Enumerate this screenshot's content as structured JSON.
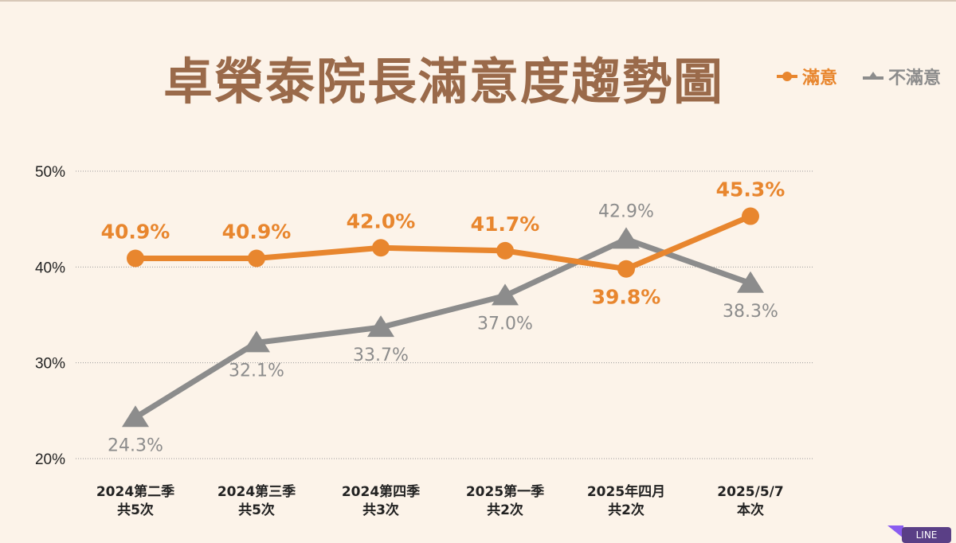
{
  "chart_data": {
    "type": "line",
    "title": "卓榮泰院長滿意度趨勢圖",
    "categories": [
      [
        "2024第二季",
        "共5次"
      ],
      [
        "2024第三季",
        "共5次"
      ],
      [
        "2024第四季",
        "共3次"
      ],
      [
        "2025第一季",
        "共2次"
      ],
      [
        "2025年四月",
        "共2次"
      ],
      [
        "2025/5/7",
        "本次"
      ]
    ],
    "series": [
      {
        "name": "滿意",
        "values": [
          40.9,
          40.9,
          42.0,
          41.7,
          39.8,
          45.3
        ],
        "labels": [
          "40.9%",
          "40.9%",
          "42.0%",
          "41.7%",
          "39.8%",
          "45.3%"
        ],
        "color": "#e8862e",
        "marker": "circle"
      },
      {
        "name": "不滿意",
        "values": [
          24.3,
          32.1,
          33.7,
          37.0,
          42.9,
          38.3
        ],
        "labels": [
          "24.3%",
          "32.1%",
          "33.7%",
          "37.0%",
          "42.9%",
          "38.3%"
        ],
        "color": "#8c8c8c",
        "marker": "triangle"
      }
    ],
    "yticks": [
      "50%",
      "40%",
      "30%",
      "20%"
    ],
    "ytick_values": [
      50,
      40,
      30,
      20
    ],
    "ylim": [
      20,
      50
    ],
    "grid": "dotted horizontal",
    "legend": "top-right"
  },
  "watermark": "LINE"
}
